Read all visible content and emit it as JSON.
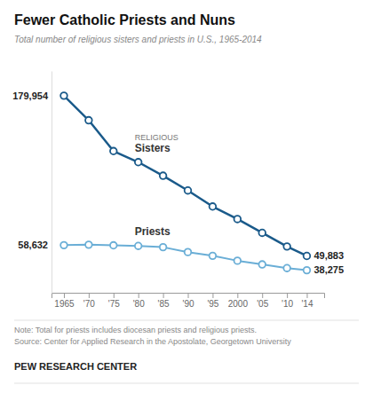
{
  "chart_data": {
    "type": "line",
    "title": "Fewer Catholic Priests and Nuns",
    "subtitle": "Total number of religious sisters and priests in U.S., 1965-2014",
    "note": "Note: Total for priests includes diocesan priests and religious priests.",
    "source": "Source: Center for Applied Research in the Apostolate, Georgetown University",
    "branding": "PEW RESEARCH CENTER",
    "annotations": [
      "RELIGIOUS"
    ],
    "x": [
      1965,
      1970,
      1975,
      1980,
      1985,
      1990,
      1995,
      2000,
      2005,
      2010,
      2014
    ],
    "series": [
      {
        "name": "Sisters",
        "color": "#1a5a8a",
        "values": [
          179954,
          160000,
          135000,
          126000,
          115000,
          103000,
          90000,
          79814,
          68634,
          57544,
          49883
        ],
        "value_labels": [
          "179,954",
          null,
          null,
          null,
          null,
          null,
          null,
          null,
          null,
          null,
          "49,883"
        ]
      },
      {
        "name": "Priests",
        "color": "#6aaed6",
        "values": [
          58632,
          59000,
          58500,
          58000,
          57000,
          53000,
          50000,
          46000,
          43000,
          40000,
          38275
        ],
        "value_labels": [
          "58,632",
          null,
          null,
          null,
          null,
          null,
          null,
          null,
          null,
          null,
          "38,275"
        ]
      }
    ],
    "xlim": [
      1962.5,
      2017.5
    ],
    "xticks": [
      1965,
      {
        "value": 1970,
        "label": "'70"
      },
      {
        "value": 1975,
        "label": "'75"
      },
      {
        "value": 1980,
        "label": "'80"
      },
      {
        "value": 1985,
        "label": "'85"
      },
      {
        "value": 1990,
        "label": "'90"
      },
      {
        "value": 1995,
        "label": "'95"
      },
      2000,
      {
        "value": 2005,
        "label": "'05"
      },
      {
        "value": 2010,
        "label": "'10"
      },
      {
        "value": 2014,
        "label": "'14"
      }
    ],
    "ylim": [
      20000,
      200000
    ],
    "tick_labels": "x",
    "grid": false,
    "marker": "circle",
    "data_labels": true
  }
}
